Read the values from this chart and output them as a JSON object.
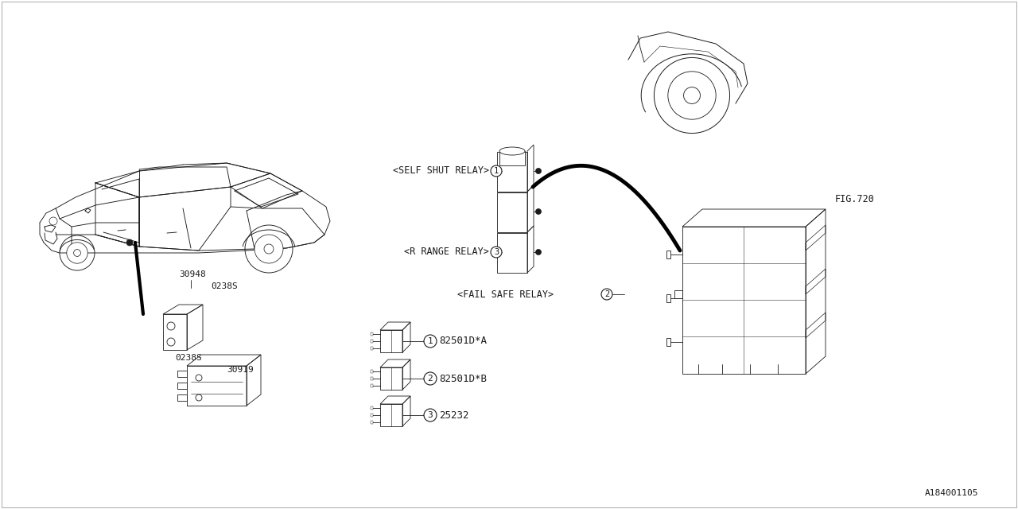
{
  "bg_color": "#ffffff",
  "line_color": "#1a1a1a",
  "part_number_label": "A184001105",
  "fig_ref": "FIG.720",
  "labels": {
    "self_shut_relay": "<SELF SHUT RELAY>",
    "r_range_relay": "<R RANGE RELAY>",
    "fail_safe_relay": "<FAIL SAFE RELAY>",
    "part1": "82501D*A",
    "part2": "82501D*B",
    "part3": "25232",
    "part_num1": "30948",
    "part_num2": "0238S",
    "part_num3": "30919",
    "part_num4": "0238S"
  }
}
